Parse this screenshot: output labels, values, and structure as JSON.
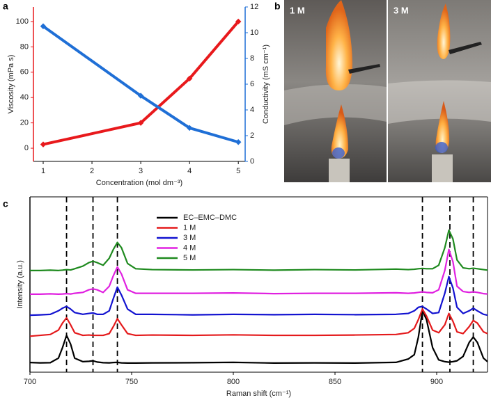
{
  "panel_labels": [
    "a",
    "b",
    "c"
  ],
  "photo_labels": [
    "1 M",
    "3 M"
  ],
  "chart_data": [
    {
      "type": "line",
      "x": [
        1,
        3,
        4,
        5
      ],
      "xlim": [
        0.8,
        5.14
      ],
      "xticks": [
        1,
        2,
        3,
        4,
        5
      ],
      "ylim": [
        -10.4,
        111.5
      ],
      "yticks": [
        0,
        20,
        40,
        60,
        80,
        100
      ],
      "y2lim": [
        0,
        12
      ],
      "y2ticks": [
        0,
        2,
        4,
        6,
        8,
        10,
        12
      ],
      "xlabel": "Concentration (mol dm⁻³)",
      "ylabel": "Viscosity (mPa s)",
      "y2label": "Conductivity (mS cm⁻¹)",
      "series": [
        {
          "color": "#e8191c",
          "axis": "y",
          "values": [
            3,
            20,
            55,
            100
          ]
        },
        {
          "color": "#1f6fd6",
          "axis": "y2",
          "values": [
            10.5,
            5.1,
            2.6,
            1.5
          ]
        }
      ]
    },
    {
      "type": "line",
      "x": [
        700,
        705,
        710,
        714,
        716,
        718,
        720,
        722,
        726,
        729,
        731,
        733,
        736,
        739,
        741,
        743,
        745,
        748,
        752,
        760,
        780,
        800,
        820,
        840,
        860,
        880,
        886,
        889,
        891,
        893,
        895,
        898,
        901,
        904,
        906,
        908,
        910,
        913,
        916,
        918,
        920,
        923,
        925
      ],
      "xlim": [
        700,
        925
      ],
      "xticks": [
        700,
        750,
        800,
        850,
        900
      ],
      "ylim": [
        0,
        100
      ],
      "box": true,
      "xlabel": "Raman shift (cm⁻¹)",
      "ylabel": "Intensity (a.u.)",
      "legend": "upper left",
      "reference_lines": [
        718,
        731,
        743,
        893,
        906.5,
        918
      ],
      "series": [
        {
          "name": "EC–EMC–DMC",
          "color": "#000000",
          "values": [
            5.5,
            5.3,
            5.4,
            8,
            14,
            21,
            16,
            8,
            6,
            6.2,
            6.5,
            5.8,
            5.4,
            5.3,
            5.5,
            5.6,
            5.3,
            5.2,
            5.2,
            5.3,
            5.4,
            5.6,
            5.2,
            5.3,
            5.2,
            5.6,
            7.5,
            10,
            20,
            35,
            30,
            14,
            7,
            6,
            5.7,
            6,
            6.5,
            9,
            17,
            20,
            17,
            8,
            6
          ]
        },
        {
          "name": "1 M",
          "color": "#e41a1c",
          "values": [
            20.5,
            21,
            21.5,
            24,
            28,
            31,
            27,
            22.5,
            21,
            21.2,
            21,
            21,
            21,
            22,
            26,
            30.5,
            27,
            22,
            21,
            21.2,
            21,
            21.3,
            21,
            21,
            21.2,
            21.5,
            22.5,
            25,
            30,
            36,
            32,
            24,
            22.5,
            27,
            33.5,
            29,
            23,
            22,
            26,
            29.5,
            28,
            23,
            22
          ]
        },
        {
          "name": "3 M",
          "color": "#1212d0",
          "values": [
            32.5,
            32.7,
            33,
            35,
            36.5,
            37.5,
            36,
            34,
            33,
            33.5,
            33.8,
            33,
            33,
            35,
            42,
            48.5,
            44,
            36,
            33,
            33,
            32.7,
            33,
            32.8,
            33,
            32.8,
            33,
            33.5,
            35,
            37,
            37.5,
            36,
            33.5,
            34,
            45,
            54.5,
            48,
            37,
            33.5,
            35,
            36.5,
            35,
            33,
            32.5
          ]
        },
        {
          "name": "4 M",
          "color": "#e020e0",
          "values": [
            44.5,
            44.5,
            44.7,
            44.5,
            44.6,
            44.8,
            44.6,
            45,
            45.5,
            47,
            47.5,
            47,
            45.5,
            49,
            55,
            60,
            56,
            47,
            45,
            45,
            45,
            45.2,
            44.8,
            45,
            45,
            45.3,
            45,
            45.2,
            45.5,
            45.8,
            45.5,
            45.3,
            47,
            58,
            70,
            63,
            49,
            46,
            45.5,
            45.8,
            45.5,
            44.8,
            44.6
          ]
        },
        {
          "name": "5 M",
          "color": "#1e8a1e",
          "values": [
            58,
            58,
            58.2,
            58,
            58.2,
            58.5,
            58.3,
            59,
            60.5,
            62.5,
            63.3,
            62.5,
            61,
            65,
            70,
            74,
            71,
            62,
            59,
            58.5,
            58.3,
            58.5,
            58.2,
            58.5,
            58.3,
            58.8,
            58.5,
            58.7,
            59,
            59.2,
            59,
            59,
            61,
            71,
            81,
            76,
            64,
            59.5,
            59,
            59.3,
            59,
            58.5,
            58.2
          ]
        }
      ]
    }
  ]
}
